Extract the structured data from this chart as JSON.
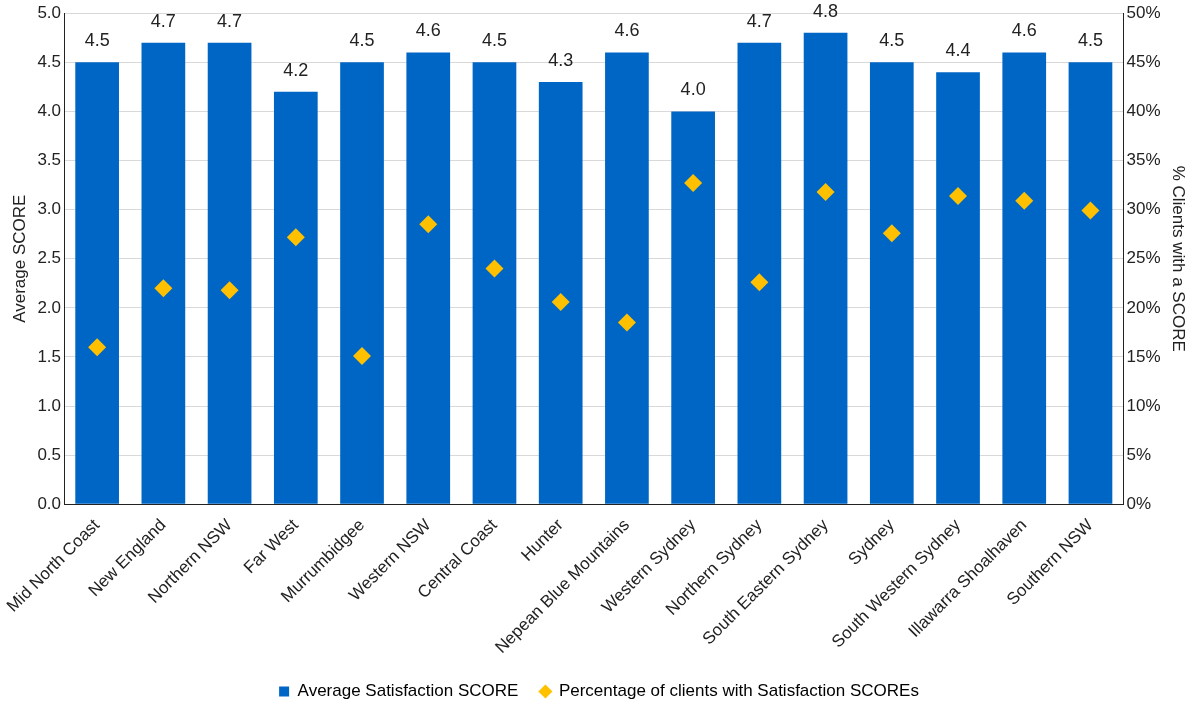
{
  "chart_data": {
    "type": "bar",
    "ylabel": "Average SCORE",
    "y2label": "% Clients with a SCORE",
    "categories": [
      "Mid North Coast",
      "New England",
      "Northern NSW",
      "Far West",
      "Murrumbidgee",
      "Western NSW",
      "Central Coast",
      "Hunter",
      "Nepean Blue Mountains",
      "Western Sydney",
      "Northern Sydney",
      "South Eastern Sydney",
      "Sydney",
      "South Western Sydney",
      "Illawarra Shoalhaven",
      "Southern NSW"
    ],
    "series": [
      {
        "name": "Average Satisfaction SCORE",
        "color": "#0066c6",
        "values": [
          4.5,
          4.7,
          4.7,
          4.2,
          4.5,
          4.6,
          4.5,
          4.3,
          4.6,
          4.0,
          4.7,
          4.8,
          4.5,
          4.4,
          4.6,
          4.5
        ],
        "value_labels": [
          "4.5",
          "4.7",
          "4.7",
          "4.2",
          "4.5",
          "4.6",
          "4.5",
          "4.3",
          "4.6",
          "4.0",
          "4.7",
          "4.8",
          "4.5",
          "4.4",
          "4.6",
          "4.5"
        ]
      },
      {
        "name": "Percentage of clients with Satisfaction SCOREs",
        "type": "scatter",
        "axis": "y2",
        "marker": "diamond",
        "color": "#ffc000",
        "x": [
          "Mid North Coast",
          "New England",
          "Northern NSW",
          "Far West",
          "Murrumbidgee",
          "Western NSW",
          "Central Coast",
          "Hunter",
          "Nepean Blue Mountains",
          "Western Sydney",
          "Northern Sydney",
          "South Eastern Sydney",
          "Sydney",
          "South Western Sydney",
          "Illawarra Shoalhaven",
          "Southern NSW"
        ],
        "values": [
          16,
          22,
          21.8,
          27.2,
          15.1,
          28.5,
          24,
          20.6,
          18.5,
          32.7,
          22.6,
          31.8,
          27.6,
          31.4,
          30.9,
          29.9
        ]
      }
    ],
    "ylim": [
      0,
      5
    ],
    "yticks": [
      {
        "value": 0,
        "label": "0.0"
      },
      {
        "value": 0.5,
        "label": "0.5"
      },
      {
        "value": 1,
        "label": "1.0"
      },
      {
        "value": 1.5,
        "label": "1.5"
      },
      {
        "value": 2,
        "label": "2.0"
      },
      {
        "value": 2.5,
        "label": "2.5"
      },
      {
        "value": 3,
        "label": "3.0"
      },
      {
        "value": 3.5,
        "label": "3.5"
      },
      {
        "value": 4,
        "label": "4.0"
      },
      {
        "value": 4.5,
        "label": "4.5"
      },
      {
        "value": 5,
        "label": "5.0"
      }
    ],
    "y2lim": [
      0,
      50
    ],
    "y2ticks": [
      {
        "value": 0,
        "label": "0%"
      },
      {
        "value": 5,
        "label": "5%"
      },
      {
        "value": 10,
        "label": "10%"
      },
      {
        "value": 15,
        "label": "15%"
      },
      {
        "value": 20,
        "label": "20%"
      },
      {
        "value": 25,
        "label": "25%"
      },
      {
        "value": 30,
        "label": "30%"
      },
      {
        "value": 35,
        "label": "35%"
      },
      {
        "value": 40,
        "label": "40%"
      },
      {
        "value": 45,
        "label": "45%"
      },
      {
        "value": 50,
        "label": "50%"
      }
    ],
    "grid": "y",
    "legend": "bottom"
  }
}
